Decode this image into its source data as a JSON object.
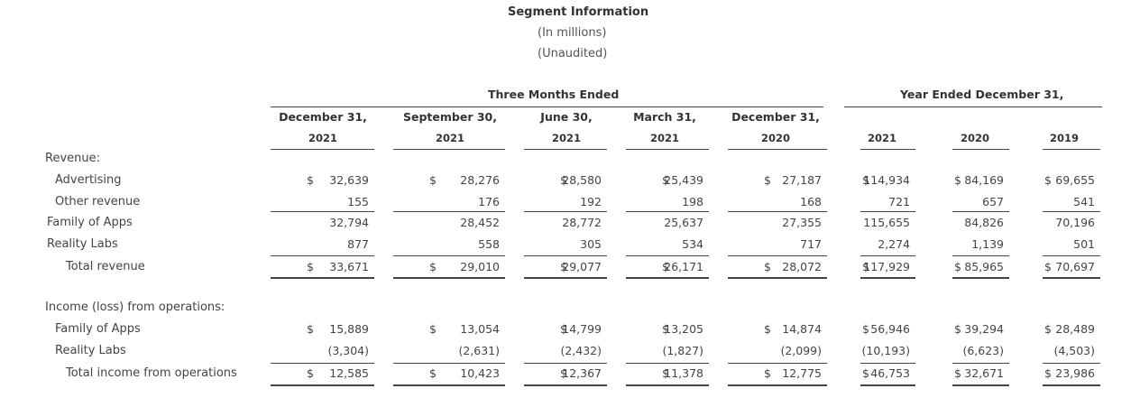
{
  "header": {
    "title": "Segment Information",
    "subtitle1": "(In millions)",
    "subtitle2": "(Unaudited)",
    "group_three_months": "Three Months Ended",
    "group_year": "Year Ended December 31,"
  },
  "columns": [
    {
      "line1": "December 31,",
      "line2": "2021"
    },
    {
      "line1": "September 30,",
      "line2": "2021"
    },
    {
      "line1": "June 30,",
      "line2": "2021"
    },
    {
      "line1": "March 31,",
      "line2": "2021"
    },
    {
      "line1": "December 31,",
      "line2": "2020"
    },
    {
      "line1": "",
      "line2": "2021"
    },
    {
      "line1": "",
      "line2": "2020"
    },
    {
      "line1": "",
      "line2": "2019"
    }
  ],
  "sections": {
    "revenue_heading": "Revenue:",
    "income_heading": "Income (loss) from operations:"
  },
  "rows": [
    {
      "label": "Advertising",
      "values": [
        "32,639",
        "28,276",
        "28,580",
        "25,439",
        "27,187",
        "114,934",
        "84,169",
        "69,655"
      ]
    },
    {
      "label": "Other revenue",
      "values": [
        "155",
        "176",
        "192",
        "198",
        "168",
        "721",
        "657",
        "541"
      ]
    },
    {
      "label": "Family of Apps",
      "values": [
        "32,794",
        "28,452",
        "28,772",
        "25,637",
        "27,355",
        "115,655",
        "84,826",
        "70,196"
      ]
    },
    {
      "label": "Reality Labs",
      "values": [
        "877",
        "558",
        "305",
        "534",
        "717",
        "2,274",
        "1,139",
        "501"
      ]
    },
    {
      "label": "Total revenue",
      "values": [
        "33,671",
        "29,010",
        "29,077",
        "26,171",
        "28,072",
        "117,929",
        "85,965",
        "70,697"
      ]
    },
    {
      "label": "Family of Apps",
      "values": [
        "15,889",
        "13,054",
        "14,799",
        "13,205",
        "14,874",
        "56,946",
        "39,294",
        "28,489"
      ]
    },
    {
      "label": "Reality Labs",
      "values": [
        "(3,304)",
        "(2,631)",
        "(2,432)",
        "(1,827)",
        "(2,099)",
        "(10,193)",
        "(6,623)",
        "(4,503)"
      ]
    },
    {
      "label": "Total income from operations",
      "values": [
        "12,585",
        "10,423",
        "12,367",
        "11,378",
        "12,775",
        "46,753",
        "32,671",
        "23,986"
      ]
    }
  ],
  "currency_symbol": "$"
}
